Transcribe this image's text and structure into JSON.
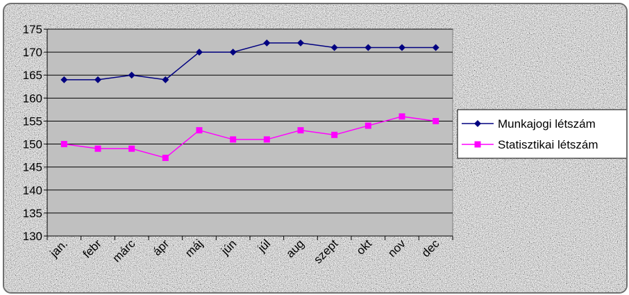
{
  "chart_data": {
    "type": "line",
    "categories": [
      "jan.",
      "febr",
      "márc",
      "ápr",
      "máj",
      "jún",
      "júl",
      "aug",
      "szept",
      "okt",
      "nov",
      "dec"
    ],
    "series": [
      {
        "name": "Munkajogi létszám",
        "values": [
          164,
          164,
          165,
          164,
          170,
          170,
          172,
          172,
          171,
          171,
          171,
          171
        ],
        "color": "#000080",
        "marker": "diamond"
      },
      {
        "name": "Statisztikai létszám",
        "values": [
          150,
          149,
          149,
          147,
          153,
          151,
          151,
          153,
          152,
          154,
          156,
          155
        ],
        "color": "#ff00ff",
        "marker": "square"
      }
    ],
    "ylim": [
      130,
      175
    ],
    "yticks": [
      130,
      135,
      140,
      145,
      150,
      155,
      160,
      165,
      170,
      175
    ],
    "grid": true,
    "legend_position": "right",
    "plot_background": "#c0c0c0"
  }
}
